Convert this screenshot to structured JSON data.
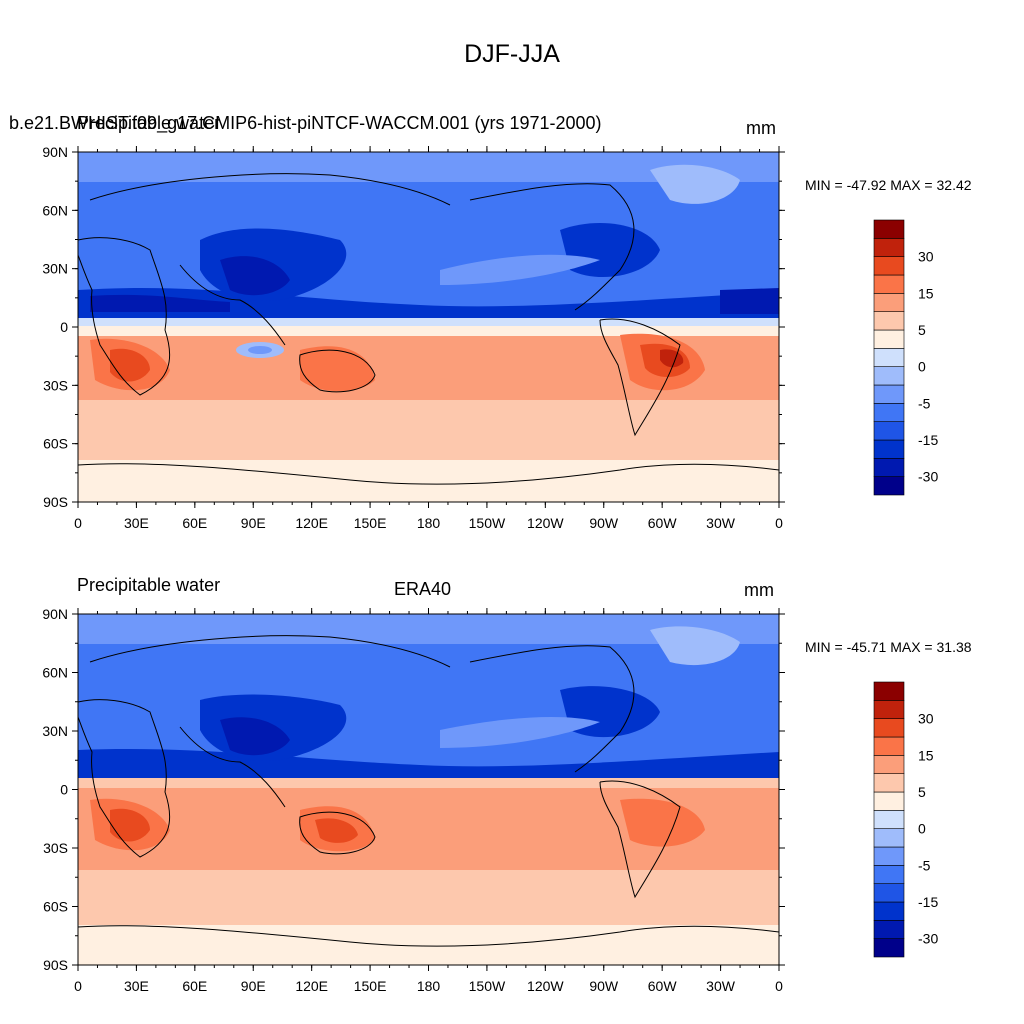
{
  "figure": {
    "title": "DJF-JJA"
  },
  "colorbar": {
    "colors": [
      "#00008a",
      "#0019b0",
      "#0033cc",
      "#1f55e6",
      "#4076f5",
      "#6f98fa",
      "#9fbcfb",
      "#cfe0fc",
      "#fff0e1",
      "#fdc8ad",
      "#fb9e7a",
      "#fa7448",
      "#e84a1f",
      "#c0220c",
      "#8b0000"
    ],
    "labels": [
      "-30",
      "-15",
      "-5",
      "0",
      "5",
      "15",
      "30"
    ]
  },
  "panels": [
    {
      "id": "model",
      "left_title": "Precipitable water",
      "center_title": "b.e21.BWHIST.f09_g17.CMIP6-hist-piNTCF-WACCM.001 (yrs 1971-2000)",
      "units": "mm",
      "stats": "MIN = -47.92 MAX =  32.42",
      "lon_labels": [
        "0",
        "30E",
        "60E",
        "90E",
        "120E",
        "150E",
        "180",
        "150W",
        "120W",
        "90W",
        "60W",
        "30W",
        "0"
      ],
      "lat_labels": [
        "90N",
        "60N",
        "30N",
        "0",
        "30S",
        "60S",
        "90S"
      ]
    },
    {
      "id": "obs",
      "left_title": "Precipitable water",
      "center_title": "ERA40",
      "units": "mm",
      "stats": "MIN = -45.71 MAX =  31.38",
      "lon_labels": [
        "0",
        "30E",
        "60E",
        "90E",
        "120E",
        "150E",
        "180",
        "150W",
        "120W",
        "90W",
        "60W",
        "30W",
        "0"
      ],
      "lat_labels": [
        "90N",
        "60N",
        "30N",
        "0",
        "30S",
        "60S",
        "90S"
      ]
    }
  ]
}
